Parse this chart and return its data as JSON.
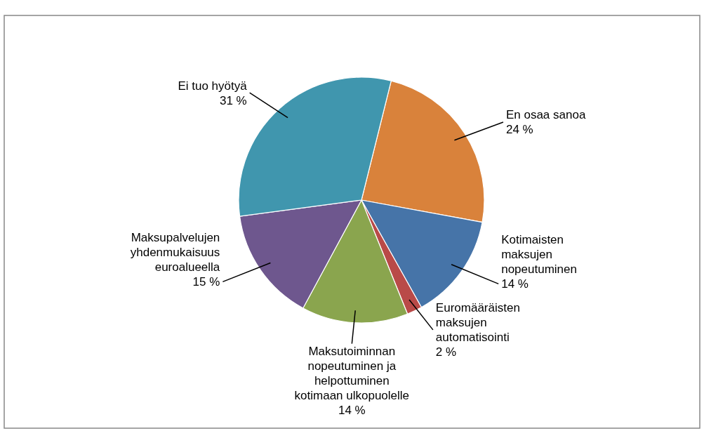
{
  "chart_data": {
    "type": "pie",
    "categories": [
      "En osaa sanoa",
      "Kotimaisten maksujen nopeutuminen",
      "Euromääräisten maksujen automatisointi",
      "Maksutoiminnan nopeutuminen ja helpottuminen kotimaan ulkopuolelle",
      "Maksupalvelujen yhdenmukaisuus euroalueella",
      "Ei tuo hyötyä"
    ],
    "values": [
      24,
      14,
      2,
      14,
      15,
      31
    ],
    "value_labels": [
      "24 %",
      "14 %",
      "2 %",
      "14 %",
      "15 %",
      "31 %"
    ],
    "colors": [
      "#d9823b",
      "#4674a8",
      "#b94a48",
      "#8aa54e",
      "#6e578e",
      "#4096ae"
    ]
  }
}
